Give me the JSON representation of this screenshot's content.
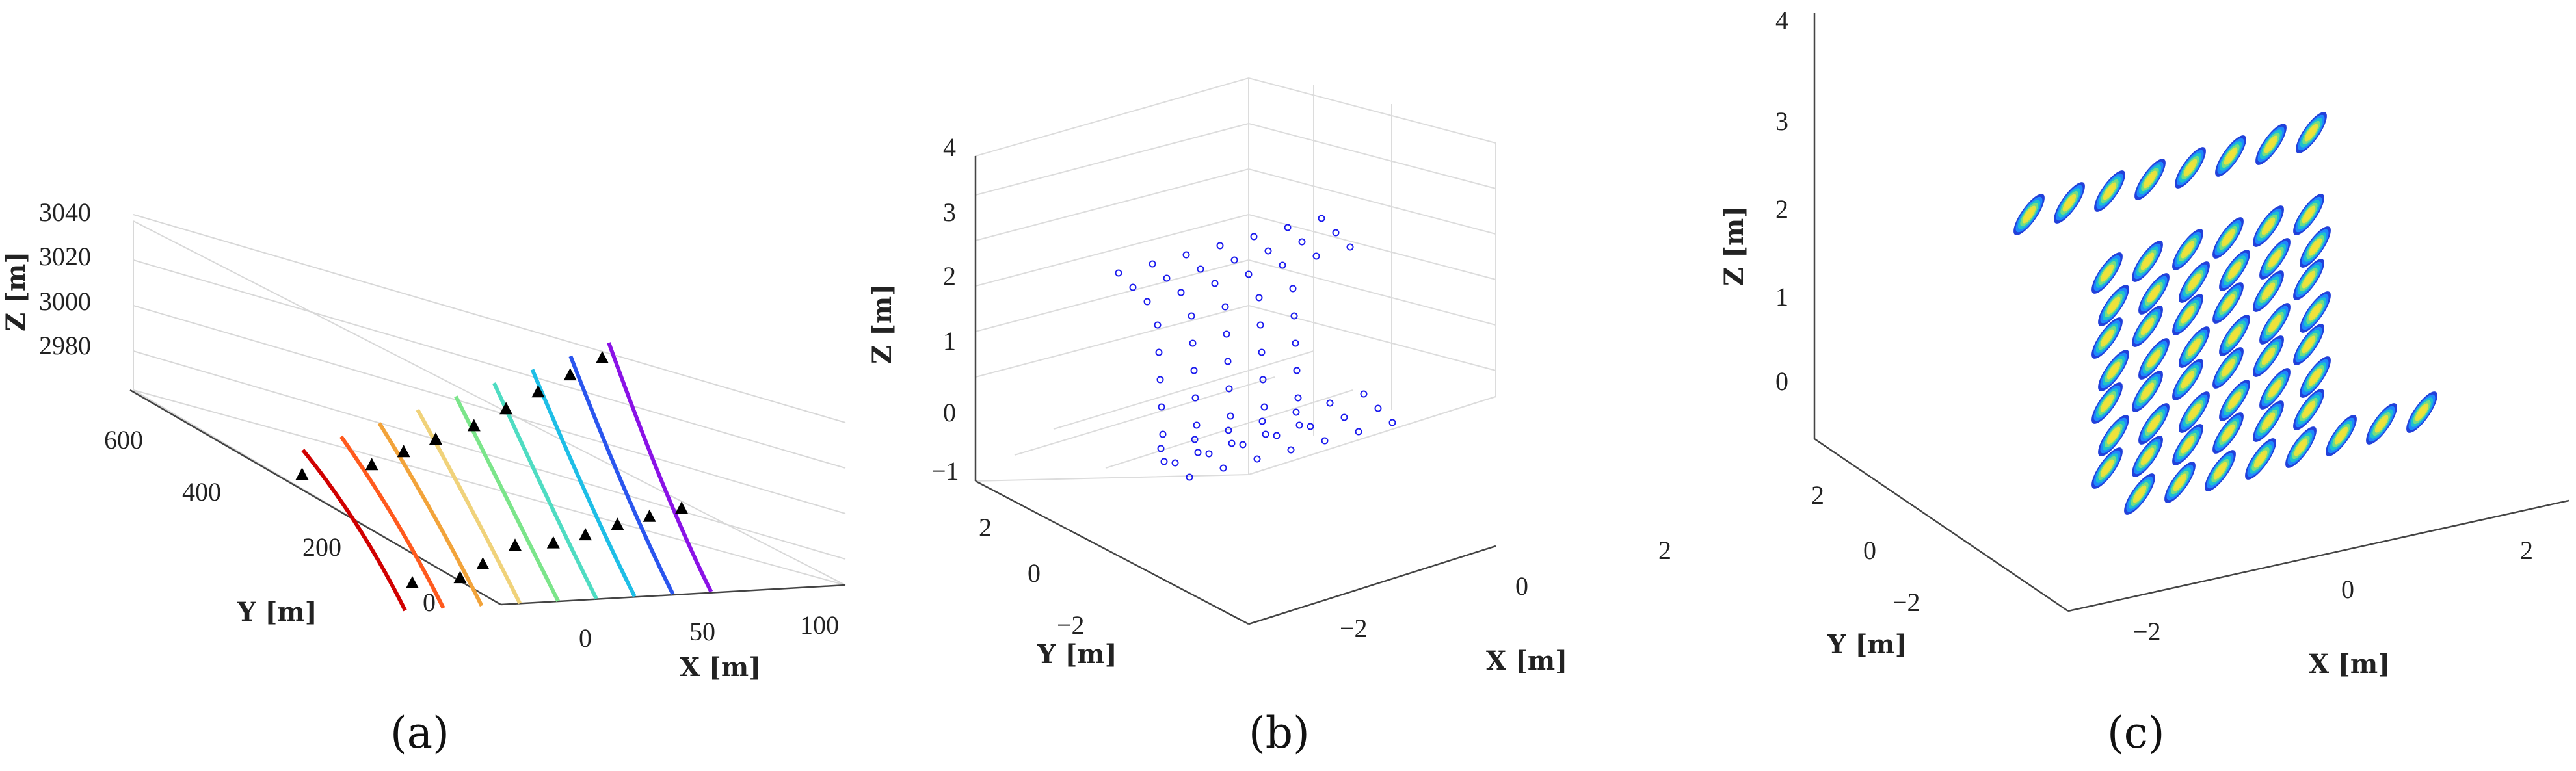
{
  "chart_data": [
    {
      "panel_label": "(a)",
      "type": "line3d",
      "xlabel": "X [m]",
      "ylabel": "Y [m]",
      "zlabel": "Z [m]",
      "xticks": [
        "0",
        "50",
        "100"
      ],
      "yticks": [
        "0",
        "200",
        "400",
        "600"
      ],
      "zticks": [
        "2980",
        "3000",
        "3020",
        "3040"
      ],
      "xlim": [
        -20,
        110
      ],
      "ylim": [
        -80,
        680
      ],
      "zlim": [
        2965,
        3045
      ],
      "grid": true,
      "series": [
        {
          "color": "#d00000",
          "points": [
            [
              -30,
              0,
              2970
            ],
            [
              -15,
              150,
              2985
            ],
            [
              -2,
              310,
              2990
            ]
          ],
          "markers": [
            [
              -20,
              40,
              2975
            ],
            [
              -10,
              270,
              2986
            ]
          ]
        },
        {
          "color": "#ff5a1e",
          "points": [
            [
              -18,
              0,
              2970
            ],
            [
              -3,
              150,
              2985
            ],
            [
              10,
              310,
              2995
            ]
          ],
          "markers": [
            [
              -5,
              40,
              2976
            ],
            [
              8,
              250,
              2992
            ]
          ]
        },
        {
          "color": "#f2a33a",
          "points": [
            [
              -6,
              0,
              2970
            ],
            [
              9,
              150,
              2985
            ],
            [
              22,
              310,
              3000
            ]
          ],
          "markers": [
            [
              6,
              60,
              2978
            ],
            [
              18,
              250,
              2997
            ]
          ]
        },
        {
          "color": "#f0d27a",
          "points": [
            [
              6,
              0,
              2970
            ],
            [
              21,
              150,
              2985
            ],
            [
              34,
              310,
              3005
            ]
          ],
          "markers": [
            [
              20,
              80,
              2982
            ],
            [
              30,
              260,
              3000
            ]
          ]
        },
        {
          "color": "#7be58a",
          "points": [
            [
              18,
              0,
              2970
            ],
            [
              33,
              150,
              2985
            ],
            [
              46,
              310,
              3010
            ]
          ],
          "markers": [
            [
              32,
              80,
              2982
            ],
            [
              42,
              260,
              3005
            ]
          ]
        },
        {
          "color": "#4fdcc2",
          "points": [
            [
              30,
              0,
              2970
            ],
            [
              45,
              150,
              2985
            ],
            [
              58,
              310,
              3015
            ]
          ],
          "markers": [
            [
              44,
              90,
              2983
            ],
            [
              54,
              270,
              3010
            ]
          ]
        },
        {
          "color": "#1ebee6",
          "points": [
            [
              42,
              0,
              2970
            ],
            [
              57,
              150,
              2985
            ],
            [
              70,
              310,
              3020
            ]
          ],
          "markers": [
            [
              56,
              100,
              2985
            ],
            [
              66,
              280,
              3015
            ]
          ]
        },
        {
          "color": "#2a55ee",
          "points": [
            [
              54,
              0,
              2970
            ],
            [
              69,
              150,
              2985
            ],
            [
              82,
              310,
              3025
            ]
          ],
          "markers": [
            [
              68,
              110,
              2986
            ],
            [
              78,
              290,
              3020
            ]
          ]
        },
        {
          "color": "#8a12e6",
          "points": [
            [
              66,
              0,
              2970
            ],
            [
              81,
              150,
              2985
            ],
            [
              94,
              310,
              3030
            ]
          ],
          "markers": [
            [
              80,
              120,
              2987
            ],
            [
              90,
              300,
              3025
            ]
          ]
        }
      ]
    },
    {
      "panel_label": "(b)",
      "type": "scatter3d",
      "xlabel": "X [m]",
      "ylabel": "Y [m]",
      "zlabel": "Z [m]",
      "xticks": [
        "−2",
        "0",
        "2"
      ],
      "yticks": [
        "−2",
        "0",
        "2"
      ],
      "zticks": [
        "−1",
        "0",
        "1",
        "2",
        "3",
        "4"
      ],
      "xlim": [
        -3,
        3
      ],
      "ylim": [
        -3,
        3
      ],
      "zlim": [
        -1,
        4
      ],
      "grid": true,
      "marker_color": "#1a1aee",
      "description_of_points": "grid of small circles forming an S-shaped surface (top row z≈2, vertical mid section, bottom row z≈0)"
    },
    {
      "panel_label": "(c)",
      "type": "scatter3d",
      "xlabel": "X [m]",
      "ylabel": "Y [m]",
      "zlabel": "Z [m]",
      "xticks": [
        "−2",
        "0",
        "2"
      ],
      "yticks": [
        "−2",
        "0",
        "2"
      ],
      "zticks": [
        "0",
        "1",
        "2",
        "3",
        "4"
      ],
      "xlim": [
        -3,
        3
      ],
      "ylim": [
        -3,
        3
      ],
      "zlim": [
        -1,
        4
      ],
      "grid": false,
      "colormap": [
        "#0a2bd6",
        "#1e90ff",
        "#1ec8c8",
        "#7ee07a",
        "#f0e23a"
      ],
      "description_of_points": "dense point clouds of elongated footprints covering the S-shaped surface"
    }
  ]
}
